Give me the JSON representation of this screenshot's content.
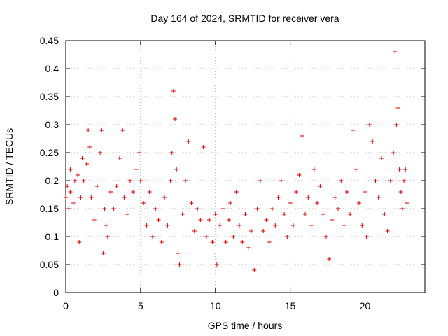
{
  "chart_data": {
    "type": "scatter",
    "title": "Day 164 of 2024, SRMTID for receiver vera",
    "xlabel": "GPS time / hours",
    "ylabel": "SRMTID / TECUs",
    "xlim": [
      0,
      24.0
    ],
    "ylim": [
      0,
      0.45
    ],
    "xticks": [
      0,
      5,
      10,
      15,
      20
    ],
    "xtick_labels": [
      "0",
      "5",
      "10",
      "15",
      "20"
    ],
    "yticks": [
      0,
      0.05,
      0.1,
      0.15,
      0.2,
      0.25,
      0.3,
      0.35,
      0.4,
      0.45
    ],
    "ytick_labels": [
      "0",
      "0.05",
      "0.1",
      "0.15",
      "0.2",
      "0.25",
      "0.3",
      "0.35",
      "0.4",
      "0.45"
    ],
    "grid": true,
    "marker": "+",
    "series": [
      {
        "name": "SRMTID",
        "color": "#e00000",
        "points": [
          [
            0.0,
            0.17
          ],
          [
            0.1,
            0.19
          ],
          [
            0.2,
            0.15
          ],
          [
            0.3,
            0.22
          ],
          [
            0.3,
            0.18
          ],
          [
            0.5,
            0.16
          ],
          [
            0.6,
            0.2
          ],
          [
            0.8,
            0.21
          ],
          [
            0.9,
            0.09
          ],
          [
            1.0,
            0.17
          ],
          [
            1.1,
            0.24
          ],
          [
            1.2,
            0.2
          ],
          [
            1.4,
            0.23
          ],
          [
            1.5,
            0.29
          ],
          [
            1.6,
            0.26
          ],
          [
            1.7,
            0.17
          ],
          [
            1.9,
            0.13
          ],
          [
            2.1,
            0.19
          ],
          [
            2.3,
            0.25
          ],
          [
            2.4,
            0.29
          ],
          [
            2.5,
            0.07
          ],
          [
            2.6,
            0.15
          ],
          [
            2.7,
            0.12
          ],
          [
            2.8,
            0.1
          ],
          [
            3.0,
            0.18
          ],
          [
            3.2,
            0.15
          ],
          [
            3.4,
            0.19
          ],
          [
            3.6,
            0.24
          ],
          [
            3.8,
            0.29
          ],
          [
            3.9,
            0.17
          ],
          [
            4.1,
            0.14
          ],
          [
            4.3,
            0.2
          ],
          [
            4.5,
            0.18
          ],
          [
            4.7,
            0.22
          ],
          [
            4.9,
            0.25
          ],
          [
            5.0,
            0.2
          ],
          [
            5.2,
            0.16
          ],
          [
            5.4,
            0.12
          ],
          [
            5.6,
            0.18
          ],
          [
            5.8,
            0.1
          ],
          [
            6.0,
            0.15
          ],
          [
            6.2,
            0.13
          ],
          [
            6.4,
            0.09
          ],
          [
            6.6,
            0.17
          ],
          [
            6.8,
            0.12
          ],
          [
            7.0,
            0.2
          ],
          [
            7.1,
            0.25
          ],
          [
            7.2,
            0.36
          ],
          [
            7.3,
            0.31
          ],
          [
            7.4,
            0.22
          ],
          [
            7.5,
            0.07
          ],
          [
            7.6,
            0.05
          ],
          [
            7.8,
            0.14
          ],
          [
            8.0,
            0.2
          ],
          [
            8.2,
            0.27
          ],
          [
            8.4,
            0.16
          ],
          [
            8.6,
            0.11
          ],
          [
            8.8,
            0.15
          ],
          [
            9.0,
            0.13
          ],
          [
            9.2,
            0.26
          ],
          [
            9.4,
            0.1
          ],
          [
            9.6,
            0.13
          ],
          [
            9.8,
            0.09
          ],
          [
            10.0,
            0.14
          ],
          [
            10.1,
            0.05
          ],
          [
            10.3,
            0.12
          ],
          [
            10.5,
            0.15
          ],
          [
            10.7,
            0.09
          ],
          [
            10.9,
            0.13
          ],
          [
            11.0,
            0.16
          ],
          [
            11.2,
            0.1
          ],
          [
            11.4,
            0.18
          ],
          [
            11.6,
            0.12
          ],
          [
            11.8,
            0.09
          ],
          [
            12.0,
            0.14
          ],
          [
            12.2,
            0.08
          ],
          [
            12.4,
            0.11
          ],
          [
            12.6,
            0.04
          ],
          [
            12.8,
            0.15
          ],
          [
            13.0,
            0.2
          ],
          [
            13.2,
            0.11
          ],
          [
            13.4,
            0.13
          ],
          [
            13.6,
            0.09
          ],
          [
            13.8,
            0.15
          ],
          [
            14.0,
            0.12
          ],
          [
            14.2,
            0.17
          ],
          [
            14.4,
            0.2
          ],
          [
            14.6,
            0.14
          ],
          [
            14.8,
            0.1
          ],
          [
            15.0,
            0.16
          ],
          [
            15.2,
            0.12
          ],
          [
            15.4,
            0.18
          ],
          [
            15.6,
            0.21
          ],
          [
            15.8,
            0.28
          ],
          [
            16.0,
            0.14
          ],
          [
            16.2,
            0.17
          ],
          [
            16.4,
            0.12
          ],
          [
            16.6,
            0.22
          ],
          [
            16.8,
            0.16
          ],
          [
            17.0,
            0.19
          ],
          [
            17.2,
            0.14
          ],
          [
            17.4,
            0.1
          ],
          [
            17.6,
            0.06
          ],
          [
            17.8,
            0.13
          ],
          [
            18.0,
            0.17
          ],
          [
            18.2,
            0.15
          ],
          [
            18.4,
            0.2
          ],
          [
            18.6,
            0.12
          ],
          [
            18.8,
            0.18
          ],
          [
            19.0,
            0.14
          ],
          [
            19.2,
            0.29
          ],
          [
            19.4,
            0.22
          ],
          [
            19.6,
            0.16
          ],
          [
            19.8,
            0.12
          ],
          [
            20.0,
            0.18
          ],
          [
            20.1,
            0.1
          ],
          [
            20.3,
            0.3
          ],
          [
            20.5,
            0.27
          ],
          [
            20.7,
            0.2
          ],
          [
            20.9,
            0.17
          ],
          [
            21.1,
            0.24
          ],
          [
            21.3,
            0.14
          ],
          [
            21.5,
            0.11
          ],
          [
            21.7,
            0.2
          ],
          [
            21.9,
            0.25
          ],
          [
            22.0,
            0.43
          ],
          [
            22.1,
            0.3
          ],
          [
            22.2,
            0.33
          ],
          [
            22.3,
            0.22
          ],
          [
            22.4,
            0.18
          ],
          [
            22.5,
            0.15
          ],
          [
            22.6,
            0.2
          ],
          [
            22.7,
            0.22
          ],
          [
            22.8,
            0.16
          ]
        ]
      }
    ]
  }
}
